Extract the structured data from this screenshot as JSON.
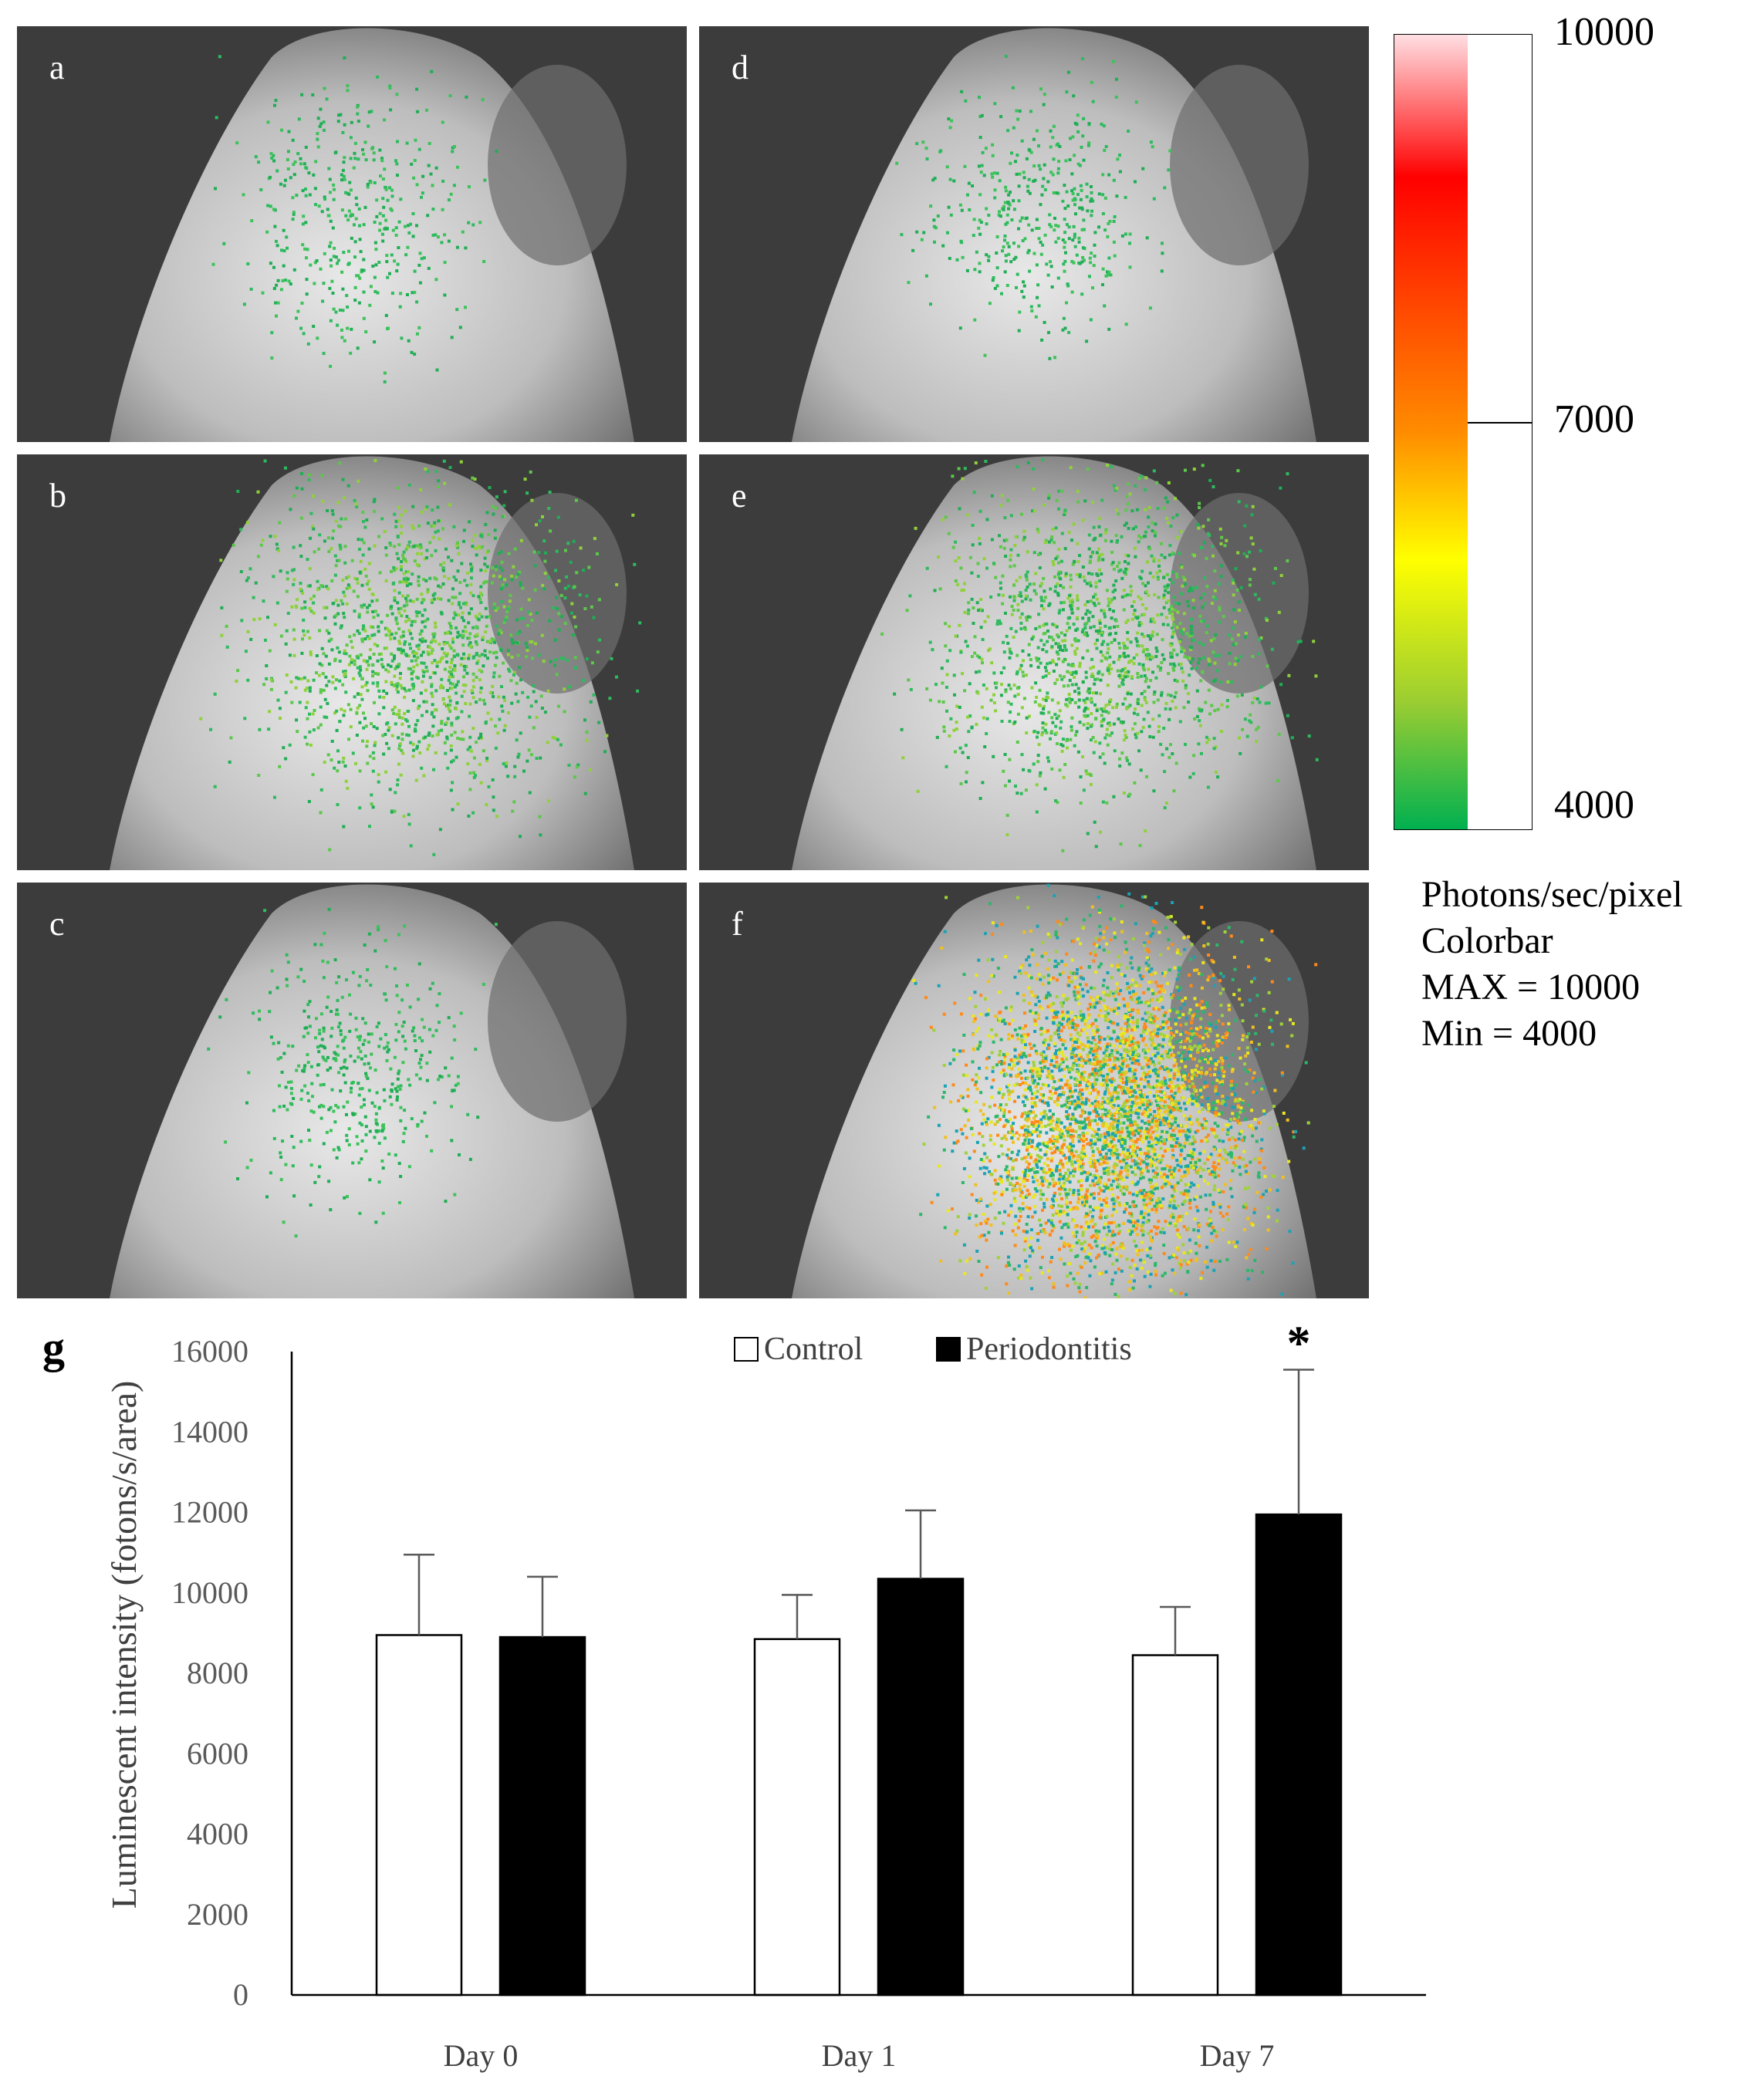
{
  "panels": [
    {
      "id": "a",
      "label": "a",
      "glow": "sparse"
    },
    {
      "id": "d",
      "label": "d",
      "glow": "sparse"
    },
    {
      "id": "b",
      "label": "b",
      "glow": "moderate"
    },
    {
      "id": "e",
      "label": "e",
      "glow": "moderate"
    },
    {
      "id": "c",
      "label": "c",
      "glow": "sparse"
    },
    {
      "id": "f",
      "label": "f",
      "glow": "intense"
    }
  ],
  "colorbar": {
    "ticks": [
      "10000",
      "7000",
      "4000"
    ],
    "info": [
      "Photons/sec/pixel",
      "Colorbar",
      "MAX = 10000",
      "Min  = 4000"
    ],
    "colors": [
      "#ffe0e4",
      "#ff0000",
      "#ff8c00",
      "#ffff00",
      "#9acd32",
      "#00b050"
    ]
  },
  "chart_data": {
    "type": "bar",
    "panel_label": "g",
    "categories": [
      "Day 0",
      "Day 1",
      "Day 7"
    ],
    "series": [
      {
        "name": "Control",
        "color": "#ffffff",
        "values": [
          8950,
          8850,
          8450
        ],
        "errors": [
          2000,
          1100,
          1200
        ]
      },
      {
        "name": "Periodontitis",
        "color": "#000000",
        "values": [
          8900,
          10350,
          11950
        ],
        "errors": [
          1500,
          1700,
          3600
        ]
      }
    ],
    "ylabel": "Luminescent intensity (fotons/s/area)",
    "xlabel": "",
    "ylim": [
      0,
      16000
    ],
    "yticks": [
      0,
      2000,
      4000,
      6000,
      8000,
      10000,
      12000,
      14000,
      16000
    ],
    "significance": [
      {
        "category": "Day 7",
        "series": "Periodontitis",
        "mark": "*"
      }
    ],
    "legend_position": "top"
  }
}
